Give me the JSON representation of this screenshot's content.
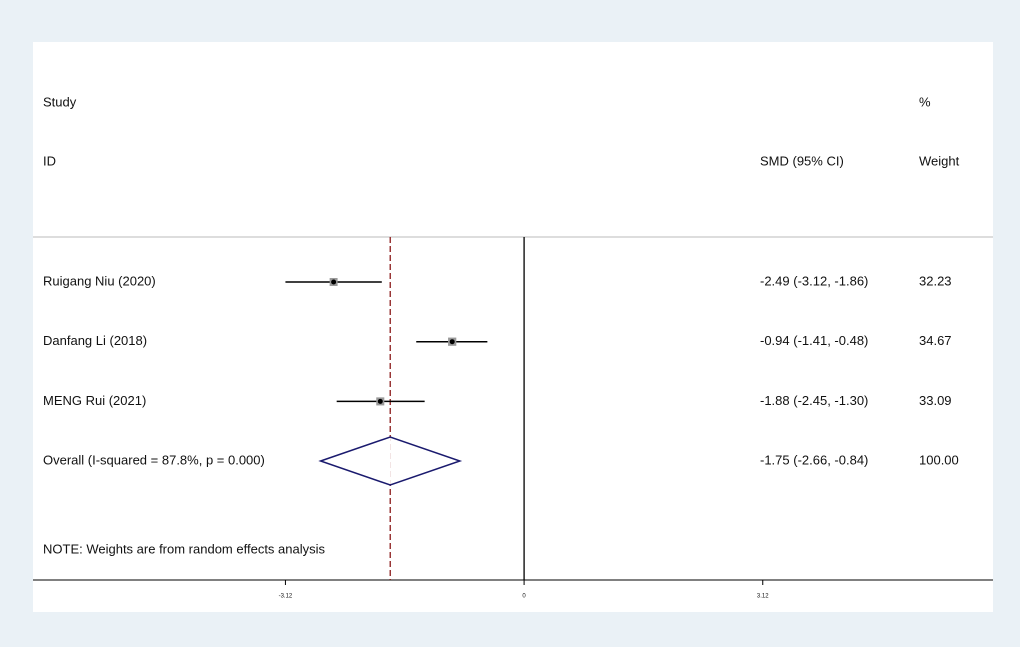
{
  "chart_data": {
    "type": "forest",
    "headers": {
      "study": "Study",
      "id": "ID",
      "percent": "%",
      "effect": "SMD (95% CI)",
      "weight": "Weight"
    },
    "studies": [
      "Ruigang Niu (2020)",
      "Danfang Li (2018)",
      "MENG Rui (2021)"
    ],
    "values": [
      -2.49,
      -0.94,
      -1.88
    ],
    "lower": [
      -3.12,
      -1.41,
      -2.45
    ],
    "upper": [
      -1.86,
      -0.48,
      -1.3
    ],
    "effect_labels": [
      "-2.49 (-3.12, -1.86)",
      "-0.94 (-1.41, -0.48)",
      "-1.88 (-2.45, -1.30)"
    ],
    "weights": [
      32.23,
      34.67,
      33.09
    ],
    "overall": {
      "label": "Overall  (I-squared = 87.8%, p = 0.000)",
      "value": -1.75,
      "lower": -2.66,
      "upper": -0.84,
      "effect_label": "-1.75 (-2.66, -0.84)",
      "weight": {
        "value": 100,
        "label": "100.00"
      }
    },
    "note": "NOTE: Weights are from random effects analysis",
    "xlim": [
      -6.42,
      6.13
    ],
    "xticks": [
      -3.12,
      0,
      3.12
    ],
    "color": "#1a1a6e",
    "line_color": "#8b1a1a"
  }
}
